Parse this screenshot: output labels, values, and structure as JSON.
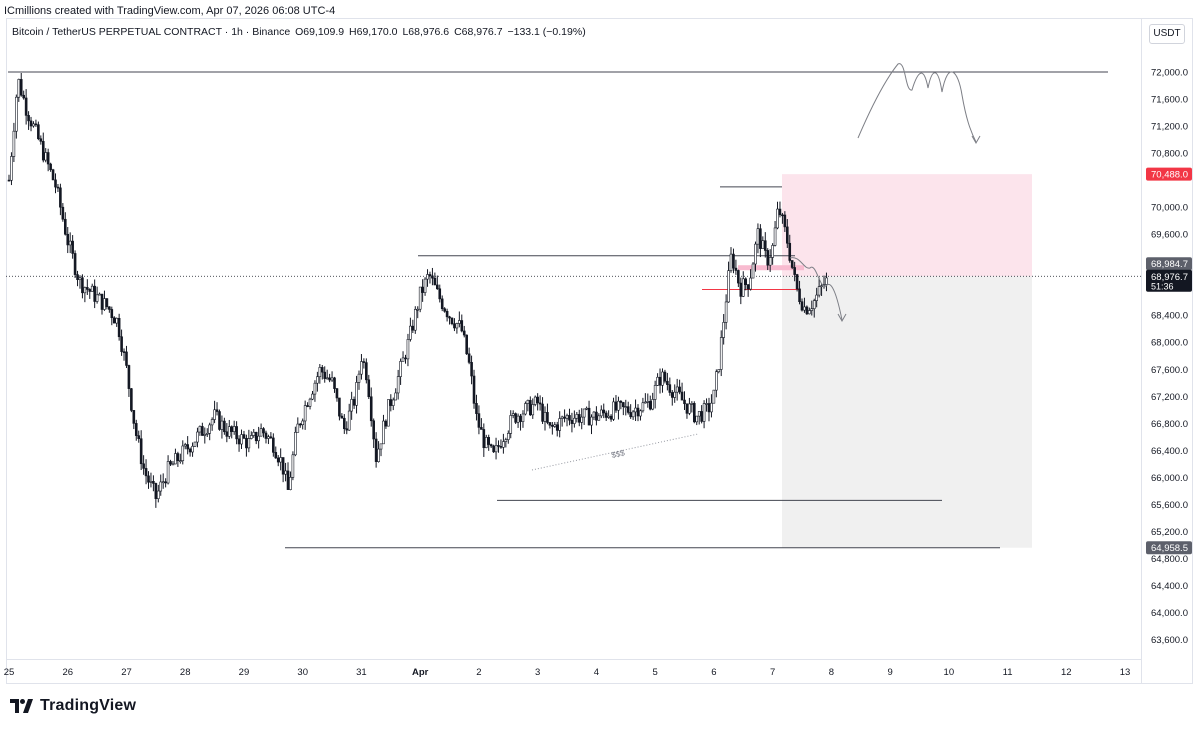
{
  "header": {
    "attribution": "ICmillions created with TradingView.com, Apr 07, 2026 06:08 UTC-4",
    "symbol": "Bitcoin / TetherUS PERPETUAL CONTRACT · 1h · Binance",
    "open": "O69,109.9",
    "high": "H69,170.0",
    "low": "L68,976.6",
    "close": "C68,976.7",
    "change": "−133.1 (−0.19%)",
    "currency": "USDT"
  },
  "footer": {
    "brand": "TradingView"
  },
  "colors": {
    "candle": "#131722",
    "sell_zone": "#fce4ec",
    "range_zone": "#f0f0f0",
    "red_label": "#f23645",
    "dark_label": "#131722",
    "grey_label": "#5d606b",
    "level_line": "#434651",
    "drawing": "#7d7f86"
  },
  "chart_data": {
    "type": "candlestick",
    "ylim": [
      63300,
      72300
    ],
    "y_ticks": [
      72000,
      71600,
      71200,
      70800,
      70000,
      69600,
      68400,
      68000,
      67600,
      67200,
      66800,
      66400,
      66000,
      65600,
      65200,
      64800,
      64400,
      64000,
      63600
    ],
    "y_tick_labels": [
      "72,000.0",
      "71,600.0",
      "71,200.0",
      "70,800.0",
      "70,000.0",
      "69,600.0",
      "68,400.0",
      "68,000.0",
      "67,600.0",
      "67,200.0",
      "66,800.0",
      "66,400.0",
      "66,000.0",
      "65,600.0",
      "65,200.0",
      "64,800.0",
      "64,400.0",
      "64,000.0",
      "63,600.0"
    ],
    "x_ticks": [
      "25",
      "26",
      "27",
      "28",
      "29",
      "30",
      "31",
      "Apr",
      "2",
      "3",
      "4",
      "5",
      "6",
      "7",
      "8",
      "9",
      "10",
      "11",
      "12",
      "13"
    ],
    "price_labels": [
      {
        "text": "70,488.0",
        "value": 70488,
        "style": "red"
      },
      {
        "text": "68,984.7",
        "value": 68984.7,
        "style": "grey"
      },
      {
        "text": "68,976.7",
        "value": 68976.7,
        "style": "dark",
        "sub": "51:36"
      },
      {
        "text": "64,958.5",
        "value": 64958.5,
        "style": "grey"
      }
    ],
    "key_levels": [
      {
        "name": "range-high",
        "value": 72000
      },
      {
        "name": "swing-high",
        "value": 70300
      },
      {
        "name": "resistance",
        "value": 69280
      },
      {
        "name": "current",
        "value": 68976.7
      },
      {
        "name": "local-support",
        "value": 68780
      },
      {
        "name": "swing-low",
        "value": 65660
      },
      {
        "name": "range-low",
        "value": 64958.5
      }
    ],
    "annotations": [
      "$$$"
    ],
    "path": [
      [
        25.0,
        70400
      ],
      [
        25.15,
        71900
      ],
      [
        25.3,
        71450
      ],
      [
        25.5,
        71000
      ],
      [
        25.8,
        70300
      ],
      [
        26.0,
        69500
      ],
      [
        26.2,
        68900
      ],
      [
        26.45,
        68700
      ],
      [
        26.7,
        68500
      ],
      [
        26.85,
        68300
      ],
      [
        27.0,
        67600
      ],
      [
        27.15,
        66700
      ],
      [
        27.3,
        66100
      ],
      [
        27.5,
        65700
      ],
      [
        27.7,
        66100
      ],
      [
        27.9,
        66300
      ],
      [
        28.1,
        66500
      ],
      [
        28.3,
        66700
      ],
      [
        28.5,
        66900
      ],
      [
        28.7,
        66700
      ],
      [
        28.9,
        66600
      ],
      [
        29.1,
        66500
      ],
      [
        29.3,
        66700
      ],
      [
        29.5,
        66500
      ],
      [
        29.65,
        66200
      ],
      [
        29.75,
        65800
      ],
      [
        29.9,
        66700
      ],
      [
        30.1,
        67200
      ],
      [
        30.3,
        67600
      ],
      [
        30.5,
        67400
      ],
      [
        30.7,
        66700
      ],
      [
        30.9,
        67200
      ],
      [
        31.0,
        67800
      ],
      [
        31.1,
        67500
      ],
      [
        31.25,
        66300
      ],
      [
        31.45,
        67000
      ],
      [
        31.6,
        67400
      ],
      [
        31.8,
        68000
      ],
      [
        32.0,
        68700
      ],
      [
        32.15,
        69000
      ],
      [
        32.3,
        68700
      ],
      [
        32.5,
        68400
      ],
      [
        32.7,
        68200
      ],
      [
        32.85,
        67600
      ],
      [
        32.95,
        66900
      ],
      [
        33.1,
        66500
      ],
      [
        33.25,
        66300
      ],
      [
        33.4,
        66600
      ],
      [
        33.6,
        66900
      ],
      [
        33.8,
        67000
      ],
      [
        34.0,
        67100
      ],
      [
        34.2,
        66700
      ],
      [
        34.5,
        66900
      ],
      [
        34.8,
        66900
      ],
      [
        35.0,
        66900
      ],
      [
        35.3,
        67000
      ],
      [
        35.6,
        67000
      ],
      [
        35.9,
        67100
      ],
      [
        36.1,
        67500
      ],
      [
        36.3,
        67300
      ],
      [
        36.5,
        67100
      ],
      [
        36.7,
        66900
      ],
      [
        36.9,
        67000
      ],
      [
        37.0,
        67200
      ],
      [
        37.1,
        67800
      ],
      [
        37.2,
        68600
      ],
      [
        37.3,
        69300
      ],
      [
        37.45,
        68800
      ],
      [
        37.6,
        68900
      ],
      [
        37.75,
        69600
      ],
      [
        37.9,
        69200
      ],
      [
        38.0,
        69400
      ],
      [
        38.1,
        70000
      ],
      [
        38.25,
        69500
      ],
      [
        38.4,
        68800
      ],
      [
        38.55,
        68500
      ],
      [
        38.7,
        68600
      ],
      [
        38.9,
        68900
      ]
    ]
  }
}
